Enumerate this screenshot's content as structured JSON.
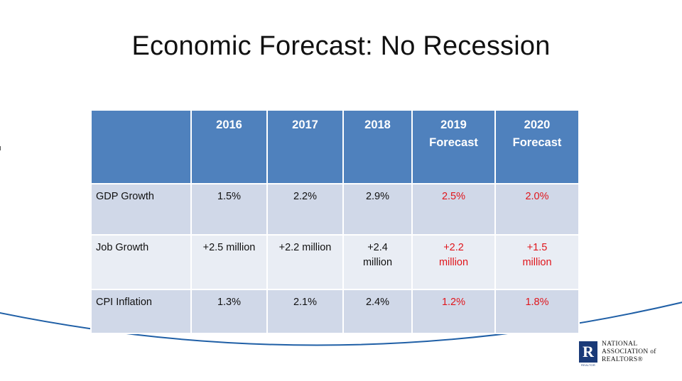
{
  "slide": {
    "title": "Economic Forecast: No Recession"
  },
  "table": {
    "headers": [
      "",
      "2016",
      "2017",
      "2018",
      "2019\nForecast",
      "2020\nForecast"
    ],
    "rows": [
      {
        "label": "GDP Growth",
        "values": [
          "1.5%",
          "2.2%",
          "2.9%"
        ],
        "forecasts": [
          "2.5%",
          "2.0%"
        ]
      },
      {
        "label": "Job Growth",
        "values": [
          "+2.5 million",
          "+2.2 million",
          "+2.4 million"
        ],
        "forecasts": [
          "+2.2 million",
          "+1.5 million"
        ]
      },
      {
        "label": "CPI Inflation",
        "values": [
          "1.3%",
          "2.1%",
          "2.4%"
        ],
        "forecasts": [
          "1.2%",
          "1.8%"
        ]
      }
    ]
  },
  "logo": {
    "mark": "R",
    "sub": "REALTOR",
    "line1": "NATIONAL",
    "line2": "ASSOCIATION of",
    "line3": "REALTORS®"
  },
  "colors": {
    "header_bg": "#4f81bd",
    "row_dark": "#d0d8e8",
    "row_light": "#e9edf4",
    "forecast_text": "#e0151b",
    "arc": "#1f5fa6"
  }
}
